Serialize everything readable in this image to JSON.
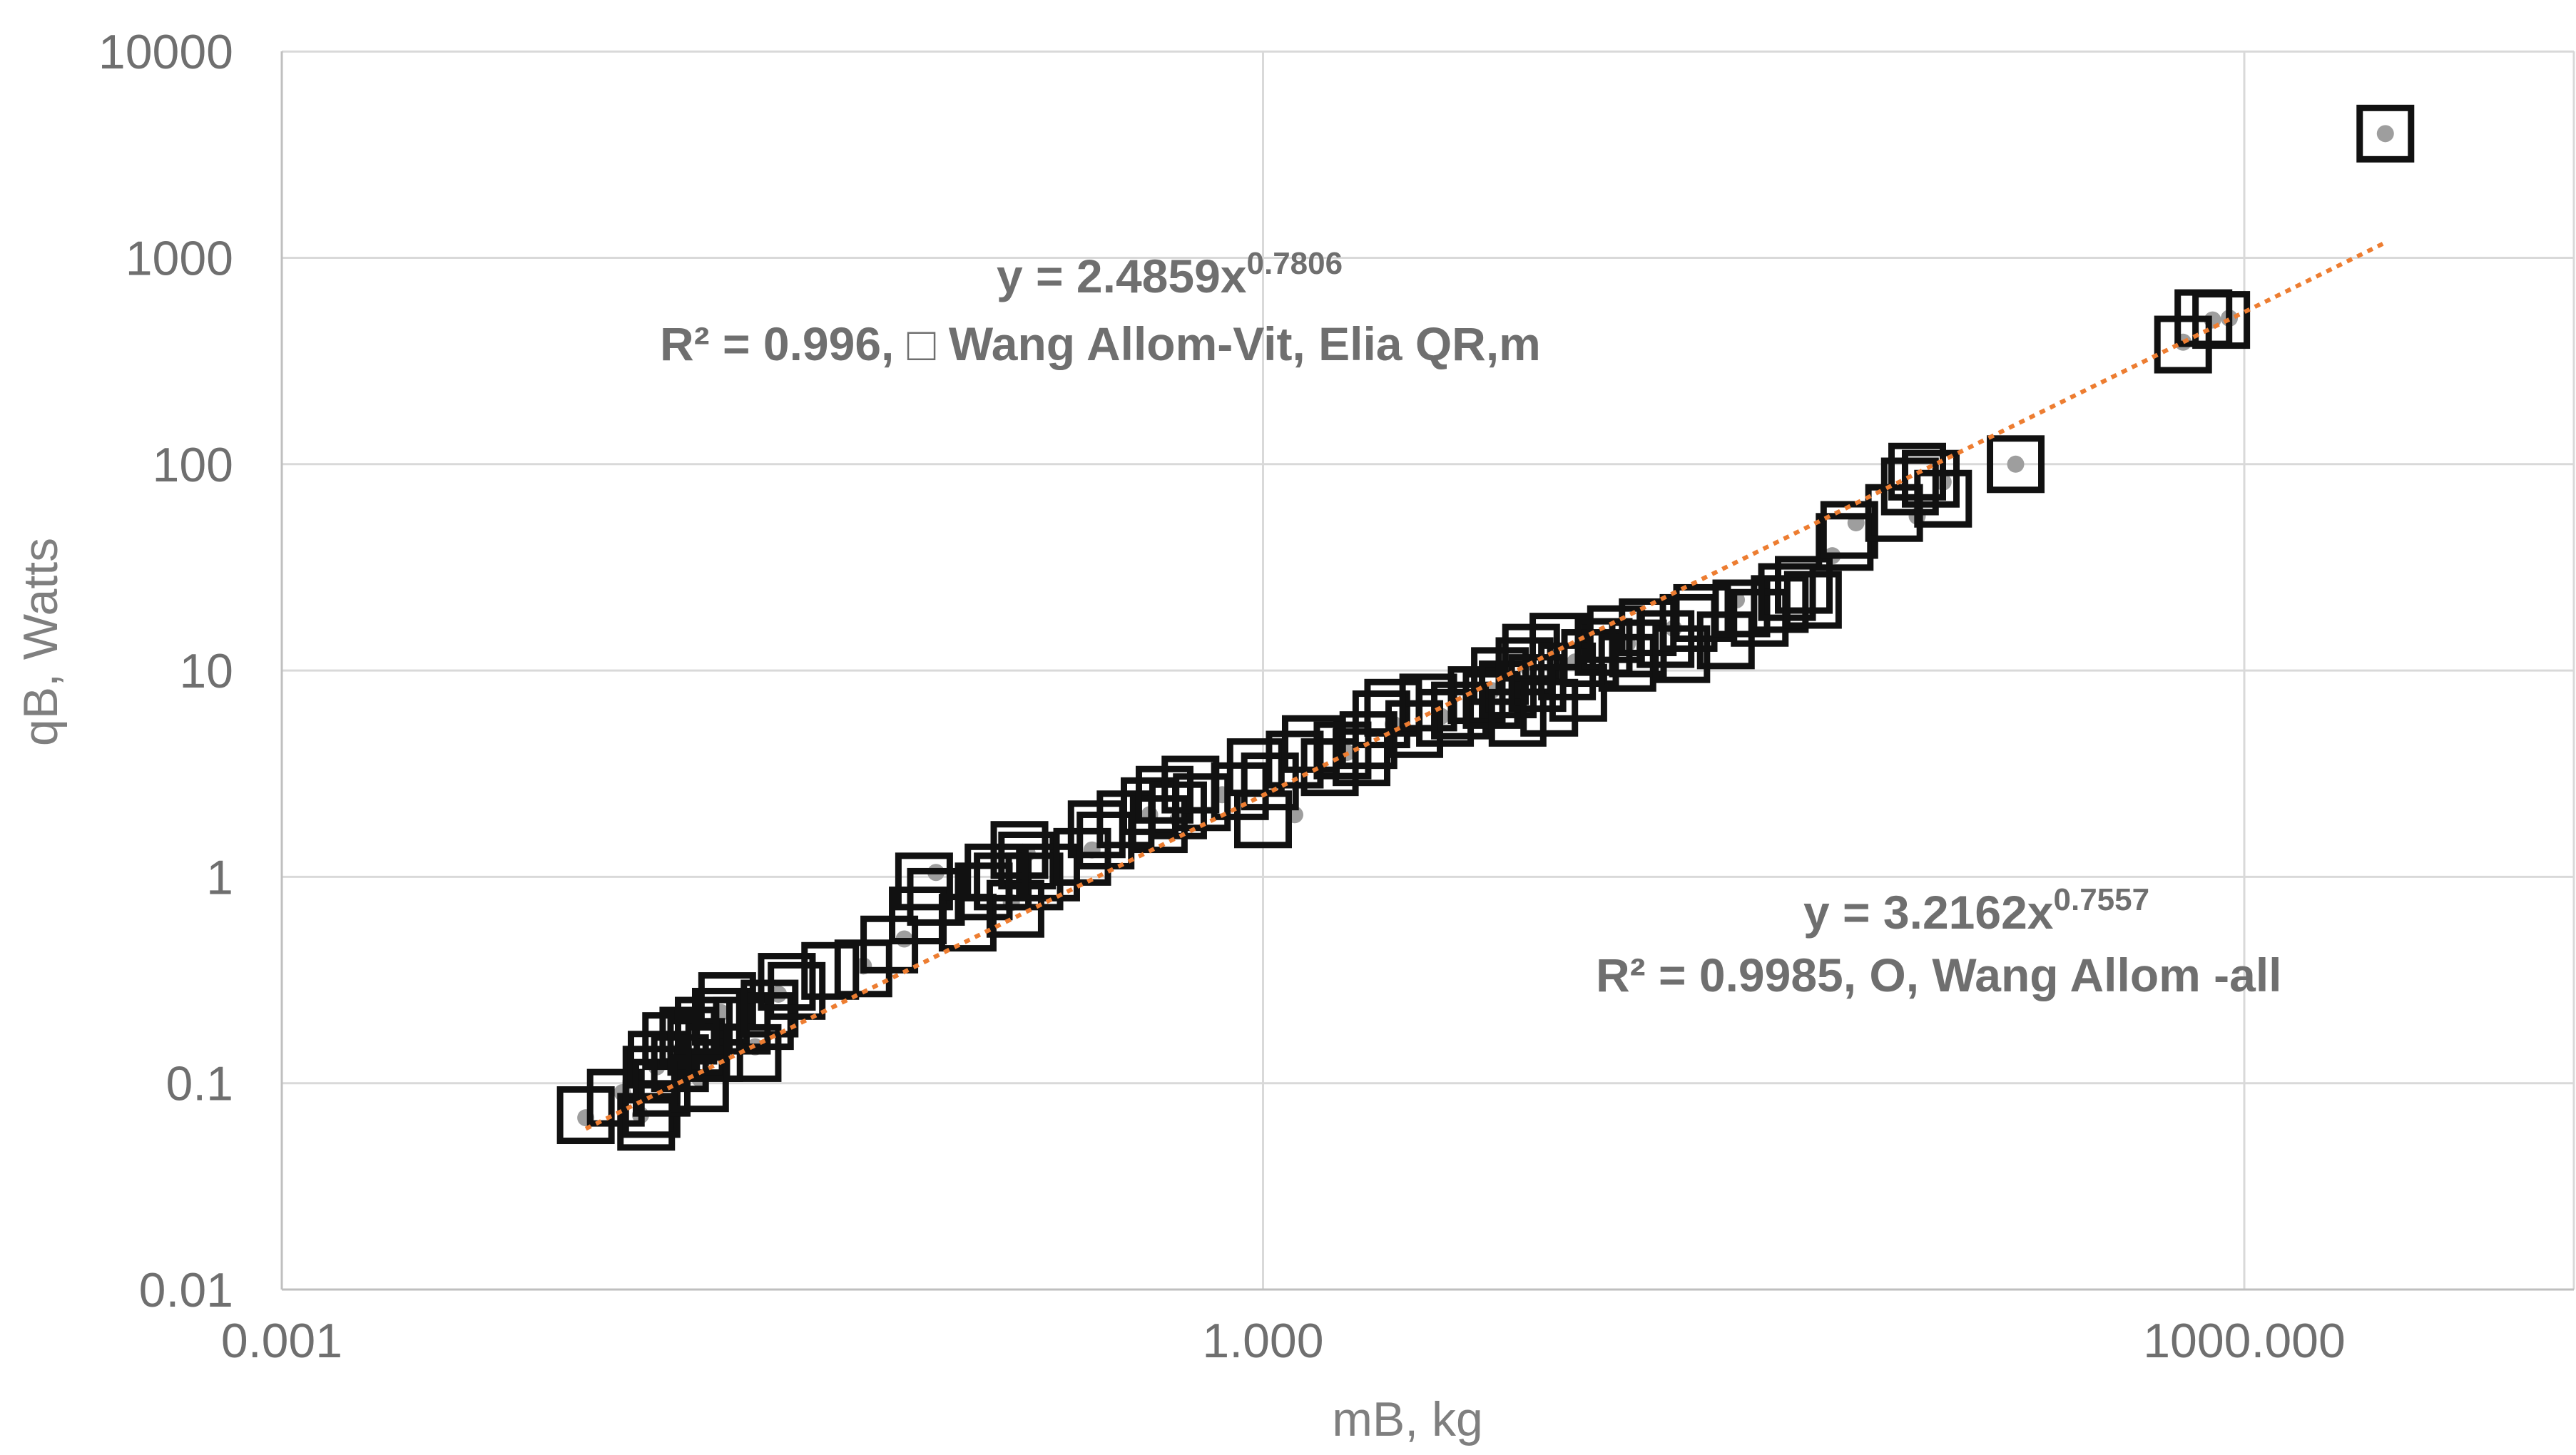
{
  "chart_data": {
    "type": "scatter",
    "xlabel": "mB, kg",
    "ylabel": "qB, Watts",
    "x_scale": "log",
    "y_scale": "log",
    "xlim": [
      0.001,
      3000
    ],
    "ylim": [
      0.01,
      10000
    ],
    "grid": true,
    "x_tick_labels": [
      "0.001",
      "1.000",
      "1000.000"
    ],
    "y_tick_labels": [
      "0.01",
      "0.1",
      "1",
      "10",
      "100",
      "1000",
      "10000"
    ],
    "annotations": [
      {
        "line1": "y = 2.4859x",
        "exp": "0.7806",
        "line2": "R² = 0.996,   □ Wang Allom-Vit, Elia  QR,m"
      },
      {
        "line1": "y = 3.2162x",
        "exp": "0.7557",
        "line2": "R² = 0.9985, O,  Wang Allom -all"
      }
    ],
    "colors": {
      "squares": "#111111",
      "dots": "#9e9e9e",
      "trendline": "#ed7d31",
      "grid": "#d9d9d9"
    },
    "series": [
      {
        "marker": "square",
        "points": [
          [
            0.0085,
            0.07
          ],
          [
            0.0105,
            0.085
          ],
          [
            0.013,
            0.065
          ],
          [
            0.0135,
            0.075
          ],
          [
            0.0135,
            0.11
          ],
          [
            0.014,
            0.13
          ],
          [
            0.0145,
            0.095
          ],
          [
            0.0155,
            0.16
          ],
          [
            0.0165,
            0.125
          ],
          [
            0.0175,
            0.17
          ],
          [
            0.0185,
            0.15
          ],
          [
            0.019,
            0.1
          ],
          [
            0.0195,
            0.19
          ],
          [
            0.021,
            0.14
          ],
          [
            0.022,
            0.21
          ],
          [
            0.023,
            0.25
          ],
          [
            0.0255,
            0.19
          ],
          [
            0.0275,
            0.14
          ],
          [
            0.03,
            0.2
          ],
          [
            0.031,
            0.23
          ],
          [
            0.035,
            0.31
          ],
          [
            0.0375,
            0.28
          ],
          [
            0.0475,
            0.35
          ],
          [
            0.06,
            0.36
          ],
          [
            0.072,
            0.47
          ],
          [
            0.088,
            0.65
          ],
          [
            0.092,
            0.95
          ],
          [
            0.1,
            0.8
          ],
          [
            0.125,
            0.6
          ],
          [
            0.14,
            0.85
          ],
          [
            0.15,
            1.05
          ],
          [
            0.16,
            0.95
          ],
          [
            0.175,
            0.7
          ],
          [
            0.18,
            1.35
          ],
          [
            0.19,
            1.2
          ],
          [
            0.2,
            0.95
          ],
          [
            0.225,
            1.05
          ],
          [
            0.28,
            1.25
          ],
          [
            0.31,
            1.7
          ],
          [
            0.33,
            1.5
          ],
          [
            0.38,
            1.9
          ],
          [
            0.45,
            2.2
          ],
          [
            0.48,
            1.8
          ],
          [
            0.5,
            2.5
          ],
          [
            0.55,
            2.1
          ],
          [
            0.6,
            2.8
          ],
          [
            0.65,
            2.3
          ],
          [
            0.85,
            2.6
          ],
          [
            0.95,
            3.4
          ],
          [
            1.0,
            1.9
          ],
          [
            1.05,
            2.9
          ],
          [
            1.25,
            3.7
          ],
          [
            1.4,
            4.4
          ],
          [
            1.6,
            3.4
          ],
          [
            1.75,
            4.1
          ],
          [
            2.0,
            3.8
          ],
          [
            2.1,
            4.6
          ],
          [
            2.3,
            5.8
          ],
          [
            2.5,
            6.6
          ],
          [
            2.9,
            5.2
          ],
          [
            3.2,
            7.0
          ],
          [
            3.6,
            5.9
          ],
          [
            4.0,
            6.4
          ],
          [
            4.5,
            7.6
          ],
          [
            5.0,
            7.2
          ],
          [
            5.3,
            9.4
          ],
          [
            5.6,
            8.1
          ],
          [
            6.0,
            5.9
          ],
          [
            6.3,
            10.5
          ],
          [
            6.6,
            12.2
          ],
          [
            6.9,
            8.7
          ],
          [
            7.5,
            6.6
          ],
          [
            8.0,
            13.8
          ],
          [
            8.5,
            9.9
          ],
          [
            9.2,
            7.8
          ],
          [
            10,
            11.5
          ],
          [
            11,
            13.0
          ],
          [
            12,
            15.0
          ],
          [
            13,
            10.9
          ],
          [
            14,
            12.8
          ],
          [
            15,
            16.2
          ],
          [
            17,
            14.2
          ],
          [
            19,
            12.0
          ],
          [
            20,
            17.0
          ],
          [
            22,
            19.0
          ],
          [
            26,
            14.0
          ],
          [
            29,
            20.0
          ],
          [
            33,
            18.0
          ],
          [
            38,
            21.0
          ],
          [
            40,
            24.0
          ],
          [
            45,
            26.0
          ],
          [
            48,
            22.0
          ],
          [
            60,
            42
          ],
          [
            62,
            48
          ],
          [
            85,
            58
          ],
          [
            95,
            78
          ],
          [
            100,
            92
          ],
          [
            110,
            85
          ],
          [
            120,
            68
          ],
          [
            200,
            100
          ],
          [
            650,
            380
          ],
          [
            750,
            510
          ],
          [
            850,
            500
          ],
          [
            2700,
            4000
          ]
        ]
      },
      {
        "marker": "circle",
        "points": [
          [
            0.0085,
            0.068
          ],
          [
            0.011,
            0.09
          ],
          [
            0.0125,
            0.07
          ],
          [
            0.014,
            0.12
          ],
          [
            0.016,
            0.14
          ],
          [
            0.019,
            0.105
          ],
          [
            0.022,
            0.22
          ],
          [
            0.028,
            0.15
          ],
          [
            0.033,
            0.27
          ],
          [
            0.06,
            0.37
          ],
          [
            0.08,
            0.5
          ],
          [
            0.1,
            1.05
          ],
          [
            0.17,
            0.75
          ],
          [
            0.19,
            1.3
          ],
          [
            0.3,
            1.35
          ],
          [
            0.45,
            2.0
          ],
          [
            0.55,
            1.9
          ],
          [
            0.75,
            2.5
          ],
          [
            1.25,
            2.0
          ],
          [
            1.8,
            4.0
          ],
          [
            2.5,
            5.5
          ],
          [
            3.5,
            6.0
          ],
          [
            5,
            8.0
          ],
          [
            6.5,
            10.2
          ],
          [
            9,
            11.0
          ],
          [
            13,
            13.5
          ],
          [
            18,
            16.0
          ],
          [
            28,
            22.0
          ],
          [
            55,
            36
          ],
          [
            65,
            52
          ],
          [
            100,
            56
          ],
          [
            120,
            82
          ],
          [
            200,
            100
          ],
          [
            650,
            390
          ],
          [
            800,
            500
          ],
          [
            900,
            510
          ],
          [
            2700,
            4000
          ]
        ]
      }
    ],
    "trendline": {
      "a": 2.4859,
      "b": 0.7806,
      "x_from": 0.0085,
      "x_to": 2700
    }
  }
}
